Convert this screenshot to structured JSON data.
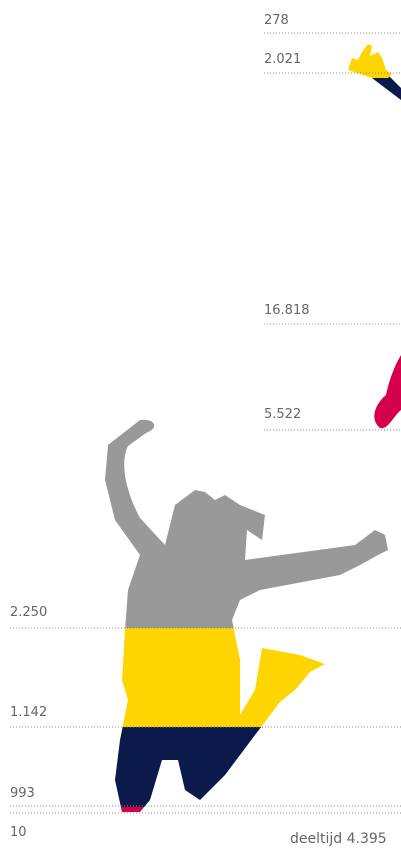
{
  "right_labels": [
    "278",
    "2.021",
    "16.818",
    "5.522"
  ],
  "left_labels": [
    "2.250",
    "1.142",
    "993",
    "10"
  ],
  "footer": "deeltijd 4.395"
}
